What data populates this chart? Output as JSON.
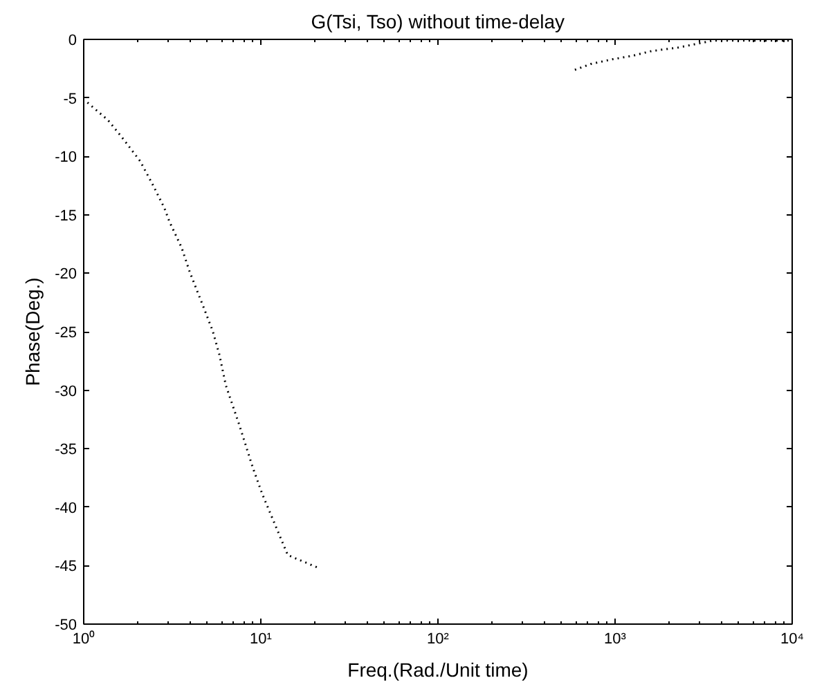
{
  "chart_data": {
    "type": "line",
    "title": "G(Tsi, Tso) without time-delay",
    "xlabel": "Freq.(Rad./Unit time)",
    "ylabel": "Phase(Deg.)",
    "log": "x",
    "grid": false,
    "line_style": "dotted",
    "marker": "none",
    "x": [
      1.05,
      1.37,
      1.63,
      2.08,
      2.43,
      2.85,
      3.05,
      3.57,
      3.97,
      4.72,
      5.34,
      5.82,
      6.35,
      7.57,
      9.0,
      10.2,
      14.2,
      21.2,
      null,
      593,
      731,
      966,
      1253,
      1603,
      2270,
      3573,
      10000
    ],
    "series": [
      {
        "color": "#000000",
        "values": [
          -5.4,
          -6.9,
          -8.3,
          -10.4,
          -12.3,
          -14.4,
          -15.6,
          -17.8,
          -19.9,
          -22.8,
          -24.9,
          -26.9,
          -29.6,
          -33.0,
          -36.6,
          -38.9,
          -44.1,
          -45.2,
          null,
          -2.6,
          -2.1,
          -1.7,
          -1.4,
          -1.0,
          -0.7,
          -0.1,
          -0.1
        ]
      }
    ],
    "xlim": [
      1,
      10000
    ],
    "xticks": [
      {
        "value": 1,
        "label": "10⁰"
      },
      {
        "value": 10,
        "label": "10¹"
      },
      {
        "value": 100,
        "label": "10²"
      },
      {
        "value": 1000,
        "label": "10³"
      },
      {
        "value": 10000,
        "label": "10⁴"
      }
    ],
    "ylim": [
      -50,
      0
    ],
    "yticks": [
      0,
      -5,
      -10,
      -15,
      -20,
      -25,
      -30,
      -35,
      -40,
      -45,
      -50
    ]
  }
}
